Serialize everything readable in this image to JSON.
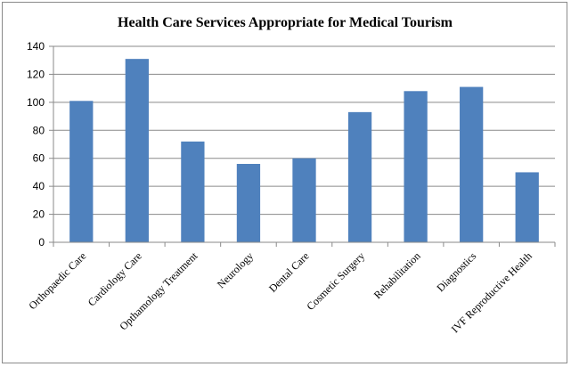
{
  "chart_data": {
    "type": "bar",
    "title": "Health Care Services Appropriate for Medical Tourism",
    "categories": [
      "Orthopaedic Care",
      "Cardiology Care",
      "Opthamology Treatment",
      "Neurology",
      "Dental Care",
      "Cosmetic Surgery",
      "Rehabilitation",
      "Diagnostics",
      "IVF Reproductive Health"
    ],
    "values": [
      101,
      131,
      72,
      56,
      60,
      93,
      108,
      111,
      50
    ],
    "ylim": [
      0,
      140
    ],
    "yticks": [
      0,
      20,
      40,
      60,
      80,
      100,
      120,
      140
    ],
    "ytick_labels": [
      "0",
      "20",
      "40",
      "60",
      "80",
      "100",
      "120",
      "140"
    ],
    "grid": true,
    "legend": "none",
    "bar_color": "#4f81bd"
  }
}
